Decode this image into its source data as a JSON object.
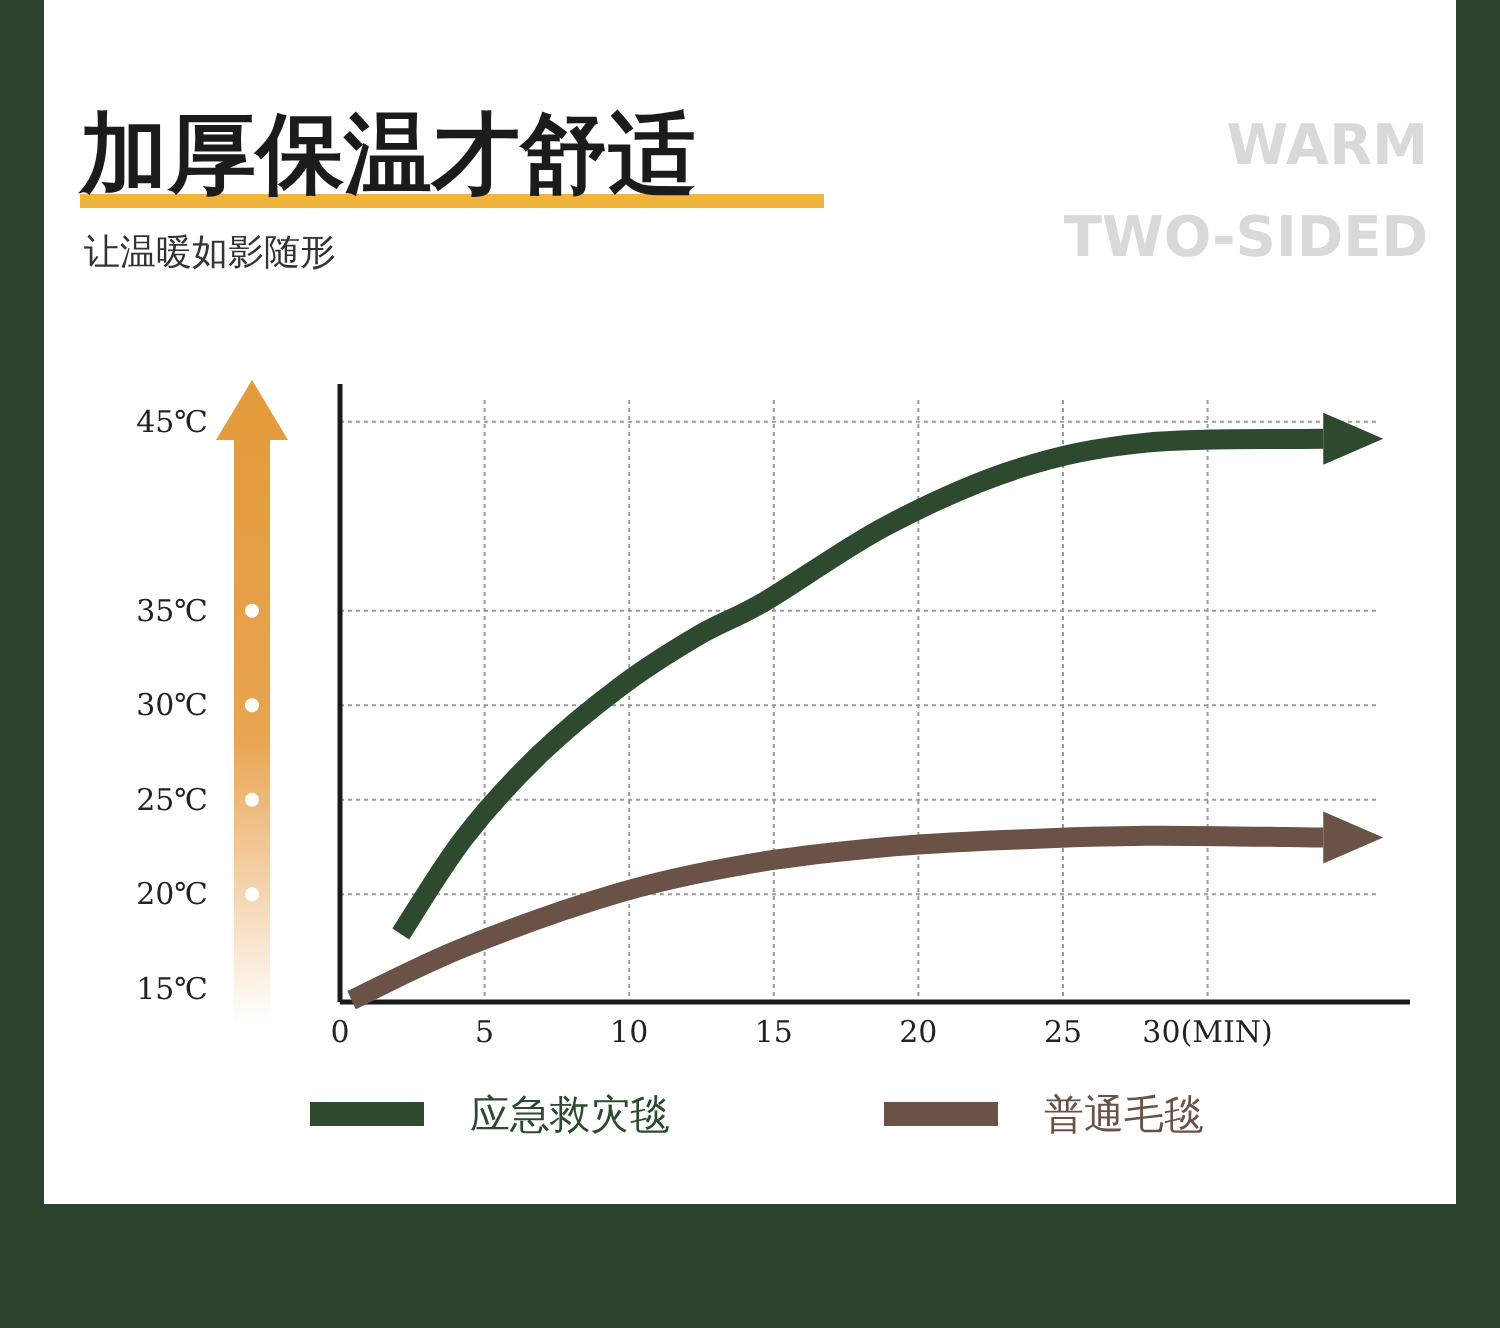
{
  "chart_data": {
    "type": "line",
    "title": "加厚保温才舒适",
    "subtitle": "让温暖如影随形",
    "annotations": [
      "WARM",
      "TWO-SIDED"
    ],
    "xlim": [
      0,
      37
    ],
    "xticks": [
      0,
      5,
      10,
      15,
      20,
      25,
      {
        "value": 30,
        "label": "30(MIN)"
      }
    ],
    "ylim": [
      14.3,
      47
    ],
    "yticks": [
      {
        "value": 15,
        "label": "15℃"
      },
      {
        "value": 20,
        "label": "20℃"
      },
      {
        "value": 25,
        "label": "25℃"
      },
      {
        "value": 30,
        "label": "30℃"
      },
      {
        "value": 35,
        "label": "35℃"
      },
      {
        "value": 45,
        "label": "45℃"
      }
    ],
    "grid": true,
    "legend": "bottom",
    "marker": "none",
    "line_style": "solid",
    "series": [
      {
        "name": "应急救灾毯",
        "color": "#2d4a2e",
        "x": [
          2.1,
          4.3,
          6.9,
          9.7,
          12.4,
          14.7,
          18.9,
          23.4,
          27.9,
          34.0
        ],
        "values": [
          17.9,
          23.0,
          27.4,
          31.0,
          33.7,
          35.5,
          39.5,
          42.5,
          43.9,
          44.1
        ]
      },
      {
        "name": "普通毛毯",
        "color": "#6b5246",
        "x": [
          0.4,
          4.3,
          9.7,
          14.1,
          18.9,
          23.4,
          27.9,
          34.0
        ],
        "values": [
          14.4,
          17.2,
          20.1,
          21.6,
          22.5,
          22.9,
          23.1,
          23.0
        ]
      }
    ]
  }
}
